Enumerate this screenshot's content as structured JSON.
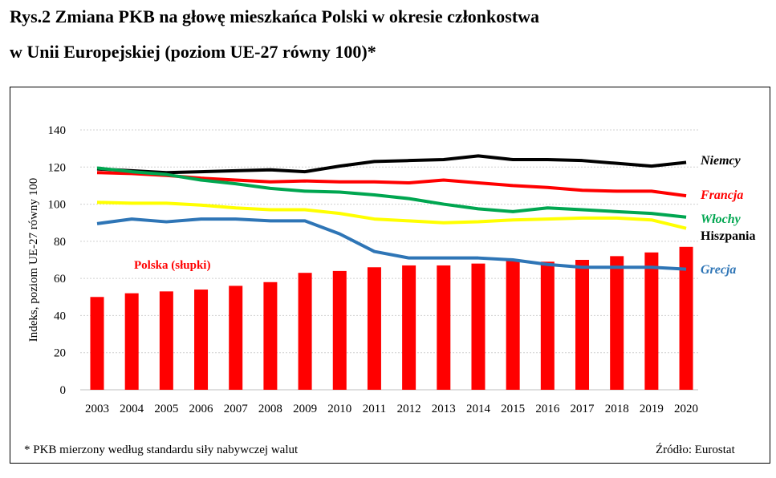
{
  "title_line1": "Rys.2 Zmiana PKB na głowę mieszkańca Polski w okresie członkostwa",
  "title_line2": "w Unii Europejskiej (poziom UE-27 równy 100)*",
  "footnote": "* PKB mierzony według standardu siły nabywczej walut",
  "source": "Źródło: Eurostat",
  "chart_data": {
    "type": "bar+line",
    "ylabel": "Indeks, poziom UE-27 równy 100",
    "ylim": [
      0,
      140
    ],
    "yticks": [
      "0",
      "20",
      "40",
      "60",
      "80",
      "100",
      "120",
      "140"
    ],
    "grid": true,
    "categories": [
      "2003",
      "2004",
      "2005",
      "2006",
      "2007",
      "2008",
      "2009",
      "2010",
      "2011",
      "2012",
      "2013",
      "2014",
      "2015",
      "2016",
      "2017",
      "2018",
      "2019",
      "2020"
    ],
    "bars": {
      "name": "Polska (słupki)",
      "color": "#ff0000",
      "values": [
        50,
        52,
        53,
        54,
        56,
        58,
        63,
        64,
        66,
        67,
        67,
        68,
        70,
        69,
        70,
        72,
        74,
        77
      ]
    },
    "series": [
      {
        "name": "Niemcy",
        "color": "#000000",
        "values": [
          119,
          118,
          117,
          117.5,
          118,
          118.5,
          117.5,
          120.5,
          123,
          123.5,
          124,
          126,
          124,
          124,
          123.5,
          122,
          120.5,
          122.5
        ]
      },
      {
        "name": "Francja",
        "color": "#ff0000",
        "values": [
          117,
          116.5,
          115.5,
          114,
          113,
          112,
          112.5,
          112,
          112,
          111.5,
          113,
          111.5,
          110,
          109,
          107.5,
          107,
          107,
          104.5
        ]
      },
      {
        "name": "Włochy",
        "color": "#00a650",
        "values": [
          119.5,
          117.5,
          116,
          113,
          111,
          108.5,
          107,
          106.5,
          105,
          103,
          100,
          97.5,
          96,
          98,
          97,
          96,
          95,
          93
        ]
      },
      {
        "name": "Hiszpania",
        "color": "#ffff00",
        "labelColor": "#000000",
        "values": [
          101,
          100.5,
          100.5,
          99.5,
          98,
          97,
          97,
          95,
          92,
          91,
          90,
          90.5,
          91.5,
          92,
          92.5,
          92.5,
          91.5,
          87
        ]
      },
      {
        "name": "Grecja",
        "color": "#2e75b6",
        "values": [
          89.5,
          92,
          90.5,
          92,
          92,
          91,
          91,
          84,
          74.5,
          71,
          71,
          71,
          70,
          67.5,
          66,
          66,
          66,
          65
        ]
      }
    ]
  }
}
